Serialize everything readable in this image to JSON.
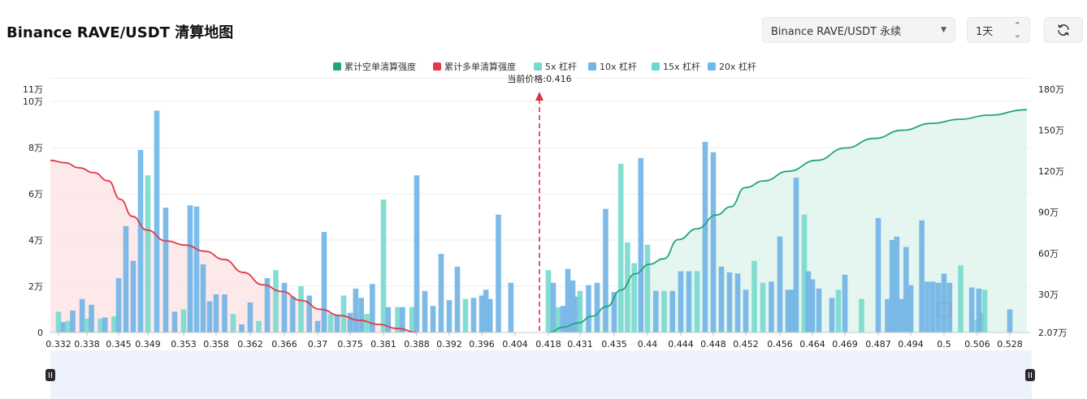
{
  "header": {
    "title": "Binance RAVE/USDT 清算地图",
    "exchange_select": "Binance RAVE/USDT 永续",
    "interval_select": "1天"
  },
  "colors": {
    "short_cum": "#22a37f",
    "long_cum": "#e03a49",
    "lev5x": "#7ad9ce",
    "lev10x": "#72b4e6",
    "lev15x": "#68dacb",
    "lev20x": "#6fb8ea"
  },
  "chart_data": {
    "type": "bar",
    "legend": [
      {
        "key": "short_cum",
        "label": "累计空单清算强度"
      },
      {
        "key": "long_cum",
        "label": "累计多单清算强度"
      },
      {
        "key": "lev5x",
        "label": "5x 杠杆"
      },
      {
        "key": "lev10x",
        "label": "10x 杠杆"
      },
      {
        "key": "lev15x",
        "label": "15x 杠杆"
      },
      {
        "key": "lev20x",
        "label": "20x 杠杆"
      }
    ],
    "current_price_label": "当前价格:0.416",
    "x_tick_labels": [
      "0.332",
      "0.338",
      "0.345",
      "0.349",
      "0.353",
      "0.358",
      "0.362",
      "0.366",
      "0.37",
      "0.375",
      "0.381",
      "0.388",
      "0.392",
      "0.396",
      "0.404",
      "0.418",
      "0.431",
      "0.435",
      "0.44",
      "0.444",
      "0.448",
      "0.452",
      "0.456",
      "0.464",
      "0.469",
      "0.487",
      "0.494",
      "0.5",
      "0.506",
      "0.528"
    ],
    "left_axis": {
      "ticks": [
        "0",
        "2万",
        "4万",
        "6万",
        "8万",
        "10万",
        "11万"
      ],
      "values": [
        0,
        20000,
        40000,
        60000,
        80000,
        100000,
        110000
      ],
      "ylim": [
        0,
        110000
      ]
    },
    "right_axis": {
      "ticks": [
        "2.07万",
        "30万",
        "60万",
        "90万",
        "120万",
        "150万",
        "180万"
      ],
      "values": [
        20700,
        300000,
        600000,
        900000,
        1200000,
        1500000,
        1800000
      ],
      "ylim": [
        20700,
        1800000
      ]
    },
    "bars": [
      {
        "price": 0.332,
        "value": 9000,
        "type": "lev5x"
      },
      {
        "price": 0.333,
        "value": 4500,
        "type": "lev10x"
      },
      {
        "price": 0.334,
        "value": 5000,
        "type": "lev5x"
      },
      {
        "price": 0.335,
        "value": 9500,
        "type": "lev10x"
      },
      {
        "price": 0.337,
        "value": 14500,
        "type": "lev10x"
      },
      {
        "price": 0.338,
        "value": 6000,
        "type": "lev5x"
      },
      {
        "price": 0.339,
        "value": 12000,
        "type": "lev10x"
      },
      {
        "price": 0.341,
        "value": 6000,
        "type": "lev5x"
      },
      {
        "price": 0.342,
        "value": 6500,
        "type": "lev10x"
      },
      {
        "price": 0.344,
        "value": 7000,
        "type": "lev5x"
      },
      {
        "price": 0.345,
        "value": 23500,
        "type": "lev10x"
      },
      {
        "price": 0.346,
        "value": 46000,
        "type": "lev10x"
      },
      {
        "price": 0.347,
        "value": 31000,
        "type": "lev10x"
      },
      {
        "price": 0.348,
        "value": 79000,
        "type": "lev20x"
      },
      {
        "price": 0.349,
        "value": 68000,
        "type": "lev5x"
      },
      {
        "price": 0.35,
        "value": 96000,
        "type": "lev20x"
      },
      {
        "price": 0.351,
        "value": 54000,
        "type": "lev10x"
      },
      {
        "price": 0.352,
        "value": 9000,
        "type": "lev10x"
      },
      {
        "price": 0.353,
        "value": 10000,
        "type": "lev5x"
      },
      {
        "price": 0.354,
        "value": 55000,
        "type": "lev10x"
      },
      {
        "price": 0.355,
        "value": 54500,
        "type": "lev20x"
      },
      {
        "price": 0.356,
        "value": 29500,
        "type": "lev10x"
      },
      {
        "price": 0.357,
        "value": 13500,
        "type": "lev10x"
      },
      {
        "price": 0.358,
        "value": 16500,
        "type": "lev10x"
      },
      {
        "price": 0.359,
        "value": 16500,
        "type": "lev10x"
      },
      {
        "price": 0.36,
        "value": 8000,
        "type": "lev5x"
      },
      {
        "price": 0.361,
        "value": 3500,
        "type": "lev10x"
      },
      {
        "price": 0.362,
        "value": 13000,
        "type": "lev10x"
      },
      {
        "price": 0.363,
        "value": 5000,
        "type": "lev5x"
      },
      {
        "price": 0.364,
        "value": 23500,
        "type": "lev10x"
      },
      {
        "price": 0.365,
        "value": 27000,
        "type": "lev5x"
      },
      {
        "price": 0.366,
        "value": 21500,
        "type": "lev10x"
      },
      {
        "price": 0.367,
        "value": 15500,
        "type": "lev10x"
      },
      {
        "price": 0.368,
        "value": 20000,
        "type": "lev5x"
      },
      {
        "price": 0.369,
        "value": 16000,
        "type": "lev10x"
      },
      {
        "price": 0.37,
        "value": 5000,
        "type": "lev10x"
      },
      {
        "price": 0.371,
        "value": 43500,
        "type": "lev10x"
      },
      {
        "price": 0.372,
        "value": 8000,
        "type": "lev5x"
      },
      {
        "price": 0.373,
        "value": 7500,
        "type": "lev10x"
      },
      {
        "price": 0.374,
        "value": 16000,
        "type": "lev5x"
      },
      {
        "price": 0.375,
        "value": 8500,
        "type": "lev10x"
      },
      {
        "price": 0.376,
        "value": 19000,
        "type": "lev10x"
      },
      {
        "price": 0.377,
        "value": 15000,
        "type": "lev10x"
      },
      {
        "price": 0.378,
        "value": 8000,
        "type": "lev5x"
      },
      {
        "price": 0.379,
        "value": 21000,
        "type": "lev10x"
      },
      {
        "price": 0.381,
        "value": 57500,
        "type": "lev5x"
      },
      {
        "price": 0.382,
        "value": 11000,
        "type": "lev10x"
      },
      {
        "price": 0.384,
        "value": 11000,
        "type": "lev5x"
      },
      {
        "price": 0.385,
        "value": 11000,
        "type": "lev10x"
      },
      {
        "price": 0.387,
        "value": 11000,
        "type": "lev5x"
      },
      {
        "price": 0.388,
        "value": 68000,
        "type": "lev10x"
      },
      {
        "price": 0.389,
        "value": 18000,
        "type": "lev10x"
      },
      {
        "price": 0.39,
        "value": 11500,
        "type": "lev10x"
      },
      {
        "price": 0.391,
        "value": 34000,
        "type": "lev10x"
      },
      {
        "price": 0.392,
        "value": 14000,
        "type": "lev10x"
      },
      {
        "price": 0.393,
        "value": 28500,
        "type": "lev10x"
      },
      {
        "price": 0.394,
        "value": 14500,
        "type": "lev5x"
      },
      {
        "price": 0.395,
        "value": 15000,
        "type": "lev10x"
      },
      {
        "price": 0.396,
        "value": 16000,
        "type": "lev10x"
      },
      {
        "price": 0.397,
        "value": 18500,
        "type": "lev10x"
      },
      {
        "price": 0.398,
        "value": 14500,
        "type": "lev10x"
      },
      {
        "price": 0.4,
        "value": 51000,
        "type": "lev10x"
      },
      {
        "price": 0.403,
        "value": 21500,
        "type": "lev10x"
      },
      {
        "price": 0.418,
        "value": 27000,
        "type": "lev5x"
      },
      {
        "price": 0.42,
        "value": 21500,
        "type": "lev10x"
      },
      {
        "price": 0.422,
        "value": 11000,
        "type": "lev5x"
      },
      {
        "price": 0.424,
        "value": 11500,
        "type": "lev10x"
      },
      {
        "price": 0.426,
        "value": 27500,
        "type": "lev10x"
      },
      {
        "price": 0.428,
        "value": 22500,
        "type": "lev10x"
      },
      {
        "price": 0.43,
        "value": 15500,
        "type": "lev10x"
      },
      {
        "price": 0.431,
        "value": 18000,
        "type": "lev5x"
      },
      {
        "price": 0.432,
        "value": 20500,
        "type": "lev10x"
      },
      {
        "price": 0.433,
        "value": 21500,
        "type": "lev10x"
      },
      {
        "price": 0.434,
        "value": 53500,
        "type": "lev10x"
      },
      {
        "price": 0.435,
        "value": 17500,
        "type": "lev10x"
      },
      {
        "price": 0.436,
        "value": 73000,
        "type": "lev5x"
      },
      {
        "price": 0.437,
        "value": 39000,
        "type": "lev5x"
      },
      {
        "price": 0.438,
        "value": 30000,
        "type": "lev5x"
      },
      {
        "price": 0.439,
        "value": 75500,
        "type": "lev10x"
      },
      {
        "price": 0.44,
        "value": 38000,
        "type": "lev5x"
      },
      {
        "price": 0.441,
        "value": 18000,
        "type": "lev10x"
      },
      {
        "price": 0.442,
        "value": 18000,
        "type": "lev5x"
      },
      {
        "price": 0.443,
        "value": 18000,
        "type": "lev10x"
      },
      {
        "price": 0.444,
        "value": 26500,
        "type": "lev10x"
      },
      {
        "price": 0.445,
        "value": 26500,
        "type": "lev10x"
      },
      {
        "price": 0.446,
        "value": 26500,
        "type": "lev5x"
      },
      {
        "price": 0.447,
        "value": 82500,
        "type": "lev10x"
      },
      {
        "price": 0.448,
        "value": 78000,
        "type": "lev10x"
      },
      {
        "price": 0.449,
        "value": 28500,
        "type": "lev10x"
      },
      {
        "price": 0.45,
        "value": 26000,
        "type": "lev10x"
      },
      {
        "price": 0.451,
        "value": 25500,
        "type": "lev10x"
      },
      {
        "price": 0.452,
        "value": 18500,
        "type": "lev10x"
      },
      {
        "price": 0.453,
        "value": 31000,
        "type": "lev5x"
      },
      {
        "price": 0.454,
        "value": 21500,
        "type": "lev5x"
      },
      {
        "price": 0.455,
        "value": 22000,
        "type": "lev10x"
      },
      {
        "price": 0.456,
        "value": 41500,
        "type": "lev10x"
      },
      {
        "price": 0.458,
        "value": 18500,
        "type": "lev10x"
      },
      {
        "price": 0.459,
        "value": 18500,
        "type": "lev10x"
      },
      {
        "price": 0.46,
        "value": 67000,
        "type": "lev10x"
      },
      {
        "price": 0.462,
        "value": 51000,
        "type": "lev5x"
      },
      {
        "price": 0.463,
        "value": 26500,
        "type": "lev10x"
      },
      {
        "price": 0.464,
        "value": 23000,
        "type": "lev10x"
      },
      {
        "price": 0.465,
        "value": 19000,
        "type": "lev10x"
      },
      {
        "price": 0.467,
        "value": 15000,
        "type": "lev10x"
      },
      {
        "price": 0.468,
        "value": 18500,
        "type": "lev5x"
      },
      {
        "price": 0.469,
        "value": 25000,
        "type": "lev10x"
      },
      {
        "price": 0.478,
        "value": 14500,
        "type": "lev5x"
      },
      {
        "price": 0.487,
        "value": 49500,
        "type": "lev10x"
      },
      {
        "price": 0.489,
        "value": 14500,
        "type": "lev10x"
      },
      {
        "price": 0.49,
        "value": 40000,
        "type": "lev10x"
      },
      {
        "price": 0.491,
        "value": 41500,
        "type": "lev10x"
      },
      {
        "price": 0.492,
        "value": 14500,
        "type": "lev10x"
      },
      {
        "price": 0.493,
        "value": 37000,
        "type": "lev10x"
      },
      {
        "price": 0.494,
        "value": 20500,
        "type": "lev10x"
      },
      {
        "price": 0.496,
        "value": 48500,
        "type": "lev10x"
      },
      {
        "price": 0.497,
        "value": 22000,
        "type": "lev10x"
      },
      {
        "price": 0.498,
        "value": 22000,
        "type": "lev10x"
      },
      {
        "price": 0.499,
        "value": 21500,
        "type": "lev10x"
      },
      {
        "price": 0.5,
        "value": 25500,
        "type": "lev10x"
      },
      {
        "price": 0.501,
        "value": 21500,
        "type": "lev10x"
      },
      {
        "price": 0.503,
        "value": 29000,
        "type": "lev5x"
      },
      {
        "price": 0.505,
        "value": 19500,
        "type": "lev10x"
      },
      {
        "price": 0.506,
        "value": 5500,
        "type": "lev5x"
      },
      {
        "price": 0.507,
        "value": 19000,
        "type": "lev10x"
      },
      {
        "price": 0.509,
        "value": 8500,
        "type": "lev10x"
      },
      {
        "price": 0.511,
        "value": 18500,
        "type": "lev5x"
      },
      {
        "price": 0.528,
        "value": 10000,
        "type": "lev10x"
      }
    ],
    "long_cumulative": [
      [
        0,
        1280000
      ],
      [
        0.03,
        1262000
      ],
      [
        0.06,
        1225000
      ],
      [
        0.09,
        1190000
      ],
      [
        0.12,
        1130000
      ],
      [
        0.145,
        995000
      ],
      [
        0.17,
        870000
      ],
      [
        0.2,
        770000
      ],
      [
        0.24,
        690000
      ],
      [
        0.28,
        660000
      ],
      [
        0.32,
        615000
      ],
      [
        0.36,
        555000
      ],
      [
        0.4,
        460000
      ],
      [
        0.44,
        370000
      ],
      [
        0.48,
        320000
      ],
      [
        0.52,
        255000
      ],
      [
        0.56,
        190000
      ],
      [
        0.6,
        145000
      ],
      [
        0.64,
        110000
      ],
      [
        0.68,
        80000
      ],
      [
        0.72,
        50000
      ],
      [
        0.76,
        20700
      ]
    ],
    "short_cumulative": [
      [
        0,
        20700
      ],
      [
        0.03,
        60000
      ],
      [
        0.06,
        90000
      ],
      [
        0.09,
        140000
      ],
      [
        0.12,
        210000
      ],
      [
        0.15,
        330000
      ],
      [
        0.18,
        450000
      ],
      [
        0.21,
        520000
      ],
      [
        0.24,
        560000
      ],
      [
        0.27,
        700000
      ],
      [
        0.31,
        780000
      ],
      [
        0.35,
        880000
      ],
      [
        0.38,
        940000
      ],
      [
        0.41,
        1080000
      ],
      [
        0.45,
        1130000
      ],
      [
        0.5,
        1200000
      ],
      [
        0.56,
        1280000
      ],
      [
        0.62,
        1370000
      ],
      [
        0.68,
        1440000
      ],
      [
        0.74,
        1500000
      ],
      [
        0.8,
        1550000
      ],
      [
        0.86,
        1580000
      ],
      [
        0.92,
        1610000
      ],
      [
        1,
        1650000
      ]
    ]
  }
}
